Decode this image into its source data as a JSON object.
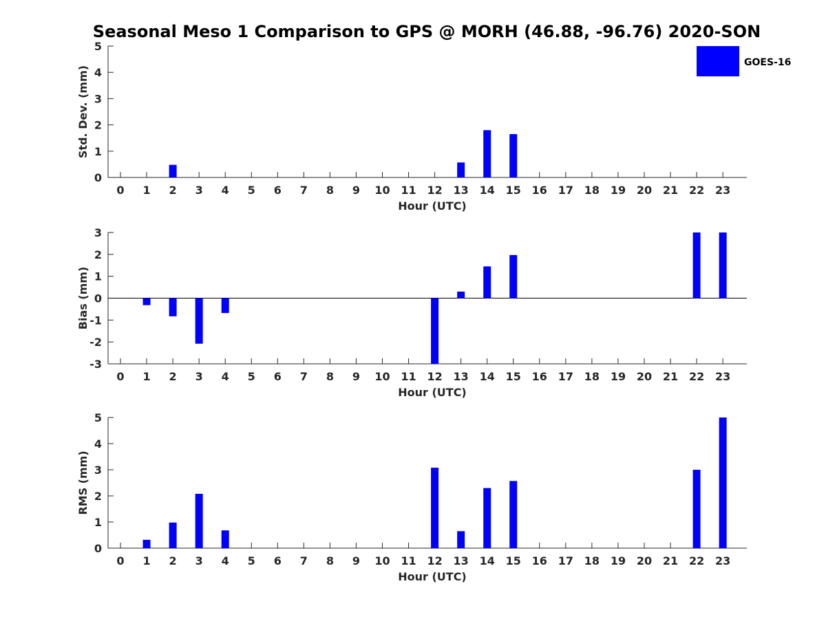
{
  "title": "Seasonal Meso 1 Comparison to GPS @ MORH (46.88, -96.76) 2020-SON",
  "legend": {
    "label": "GOES-16",
    "color": "#0000ff"
  },
  "chart_data": [
    {
      "type": "bar",
      "title": "Seasonal Meso 1 Comparison to GPS @ MORH (46.88, -96.76) 2020-SON",
      "xlabel": "Hour (UTC)",
      "ylabel": "Std. Dev. (mm)",
      "ylim": [
        0,
        5
      ],
      "yticks": [
        0,
        1,
        2,
        3,
        4,
        5
      ],
      "categories": [
        "0",
        "1",
        "2",
        "3",
        "4",
        "5",
        "6",
        "7",
        "8",
        "9",
        "10",
        "11",
        "12",
        "13",
        "14",
        "15",
        "16",
        "17",
        "18",
        "19",
        "20",
        "21",
        "22",
        "23"
      ],
      "series": [
        {
          "name": "GOES-16",
          "color": "#0000ff",
          "values": [
            null,
            null,
            0.48,
            null,
            null,
            null,
            null,
            null,
            null,
            null,
            null,
            null,
            null,
            0.57,
            1.8,
            1.65,
            null,
            null,
            null,
            null,
            null,
            null,
            null,
            null
          ]
        }
      ]
    },
    {
      "type": "bar",
      "xlabel": "Hour (UTC)",
      "ylabel": "Bias (mm)",
      "ylim": [
        -3,
        3
      ],
      "yticks": [
        -3,
        -2,
        -1,
        0,
        1,
        2,
        3
      ],
      "categories": [
        "0",
        "1",
        "2",
        "3",
        "4",
        "5",
        "6",
        "7",
        "8",
        "9",
        "10",
        "11",
        "12",
        "13",
        "14",
        "15",
        "16",
        "17",
        "18",
        "19",
        "20",
        "21",
        "22",
        "23"
      ],
      "series": [
        {
          "name": "GOES-16",
          "color": "#0000ff",
          "values": [
            null,
            -0.32,
            -0.83,
            -2.08,
            -0.68,
            null,
            null,
            null,
            null,
            null,
            null,
            null,
            -3.0,
            0.3,
            1.45,
            1.97,
            null,
            null,
            null,
            null,
            null,
            null,
            3.0,
            3.0
          ]
        }
      ]
    },
    {
      "type": "bar",
      "xlabel": "Hour (UTC)",
      "ylabel": "RMS (mm)",
      "ylim": [
        0,
        5
      ],
      "yticks": [
        0,
        1,
        2,
        3,
        4,
        5
      ],
      "categories": [
        "0",
        "1",
        "2",
        "3",
        "4",
        "5",
        "6",
        "7",
        "8",
        "9",
        "10",
        "11",
        "12",
        "13",
        "14",
        "15",
        "16",
        "17",
        "18",
        "19",
        "20",
        "21",
        "22",
        "23"
      ],
      "series": [
        {
          "name": "GOES-16",
          "color": "#0000ff",
          "values": [
            null,
            0.32,
            0.98,
            2.08,
            0.68,
            null,
            null,
            null,
            null,
            null,
            null,
            null,
            3.08,
            0.65,
            2.3,
            2.57,
            null,
            null,
            null,
            null,
            null,
            null,
            3.0,
            5.0
          ]
        }
      ]
    }
  ]
}
